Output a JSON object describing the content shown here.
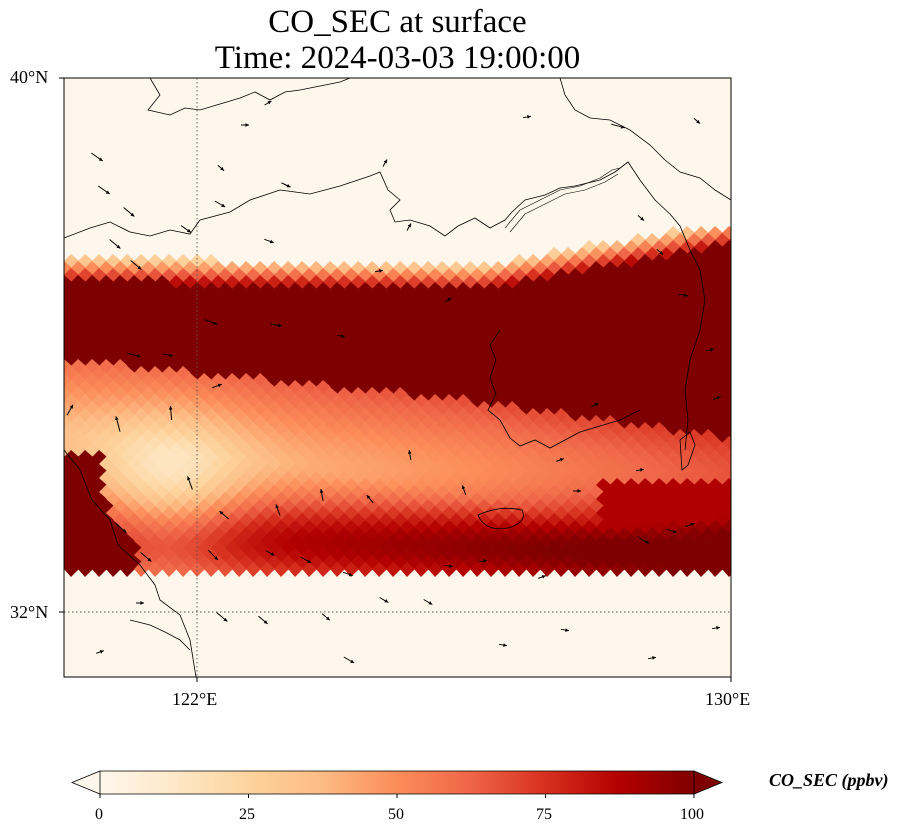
{
  "title": {
    "line1": "CO_SEC at surface",
    "line2": "Time: 2024-03-03 19:00:00"
  },
  "map": {
    "type": "heatmap",
    "variable": "CO_SEC",
    "lat_range": [
      31.2,
      40.0
    ],
    "lon_range": [
      120.0,
      130.0
    ],
    "x_ticks": [
      "122°E",
      "130°E"
    ],
    "y_ticks": [
      "40°N",
      "32°N"
    ],
    "gridline_lon": 122,
    "gridline_lat": 32,
    "colormap": "OrRd",
    "colors": [
      "#fff7ec",
      "#fee8c8",
      "#fdd49e",
      "#fdbb84",
      "#fc8d59",
      "#ef6548",
      "#d7301f",
      "#b30000",
      "#7f0000"
    ]
  },
  "colorbar": {
    "label": "CO_SEC (ppbv)",
    "range": [
      0,
      100
    ],
    "ticks": [
      "0",
      "25",
      "50",
      "75",
      "100"
    ],
    "extend": "both"
  }
}
